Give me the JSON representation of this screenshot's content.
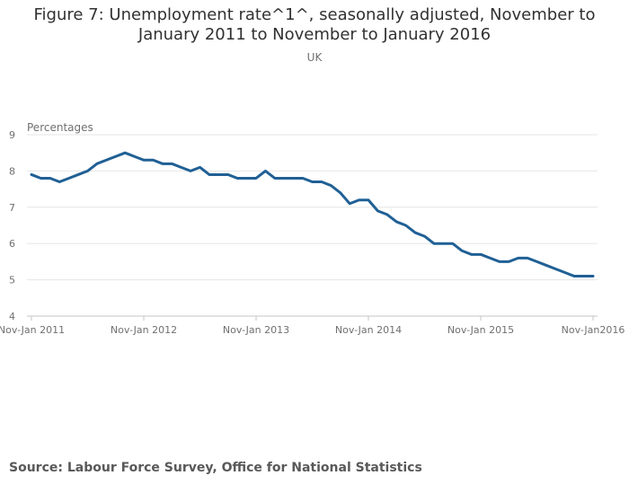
{
  "chart_data": {
    "type": "line",
    "title_lines": [
      "Figure 7: Unemployment rate^1^, seasonally adjusted, November to",
      "January 2011 to November to January 2016"
    ],
    "subtitle": "UK",
    "ylabel": "Percentages",
    "ylim": [
      4,
      9
    ],
    "yticks": [
      4,
      5,
      6,
      7,
      8,
      9
    ],
    "grid": true,
    "color": "#206095",
    "x_tick_labels": [
      "Nov-Jan 2011",
      "Nov-Jan 2012",
      "Nov-Jan 2013",
      "Nov-Jan 2014",
      "Nov-Jan 2015",
      "Nov-Jan2016"
    ],
    "series": [
      {
        "values": [
          7.9,
          7.8,
          7.8,
          7.7,
          7.8,
          7.9,
          8.0,
          8.2,
          8.3,
          8.4,
          8.5,
          8.4,
          8.3,
          8.3,
          8.2,
          8.2,
          8.1,
          8.0,
          8.1,
          7.9,
          7.9,
          7.9,
          7.8,
          7.8,
          7.8,
          8.0,
          7.8,
          7.8,
          7.8,
          7.8,
          7.7,
          7.7,
          7.6,
          7.4,
          7.1,
          7.2,
          7.2,
          6.9,
          6.8,
          6.6,
          6.5,
          6.3,
          6.2,
          6.0,
          6.0,
          6.0,
          5.8,
          5.7,
          5.7,
          5.6,
          5.5,
          5.5,
          5.6,
          5.6,
          5.5,
          5.4,
          5.3,
          5.2,
          5.1,
          5.1,
          5.1
        ]
      }
    ]
  },
  "footer": {
    "source": "Source: Labour Force Survey, Office for National Statistics"
  }
}
